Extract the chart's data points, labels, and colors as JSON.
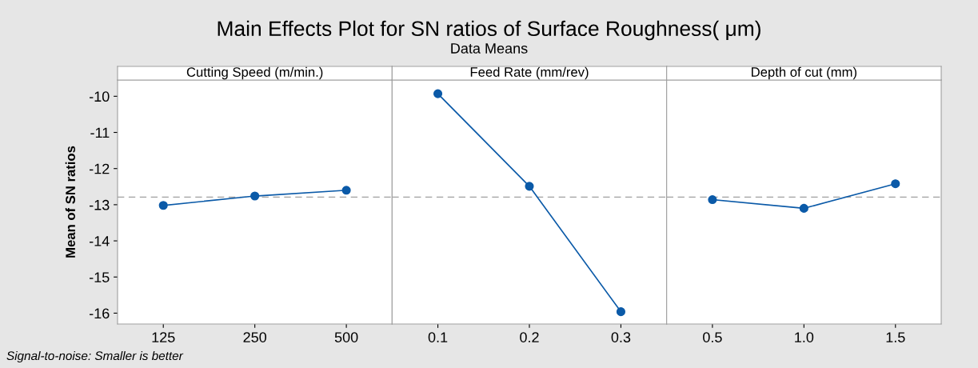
{
  "chart_data": [
    {
      "type": "other",
      "title": "Main Effects Plot for SN ratios of Surface Roughness( μm)",
      "subtitle": "Data Means",
      "annotations": [
        "Signal-to-noise: Smaller is better"
      ]
    },
    {
      "type": "line",
      "title": "Cutting Speed (m/min.)",
      "ylabel": "Mean of SN ratios",
      "categories": [
        "125",
        "250",
        "500"
      ],
      "series": [
        {
          "color": "#0b5aa8",
          "values": [
            -13.02,
            -12.76,
            -12.6
          ]
        }
      ],
      "ylim": [
        -16.3,
        -9.55
      ],
      "yticks": [
        -16,
        -15,
        -14,
        -13,
        -12,
        -11,
        -10
      ],
      "marker": "circle",
      "grid": false,
      "legend": false,
      "ref_lines": [
        {
          "axis": "y",
          "value": -12.79,
          "color": "#a0a0a0",
          "line_style": "dashed"
        }
      ]
    },
    {
      "type": "line",
      "title": "Feed Rate (mm/rev)",
      "categories": [
        "0.1",
        "0.2",
        "0.3"
      ],
      "series": [
        {
          "color": "#0b5aa8",
          "values": [
            -9.93,
            -12.49,
            -15.96
          ]
        }
      ],
      "ylim": [
        -16.3,
        -9.55
      ],
      "tick_labels": "x",
      "marker": "circle",
      "grid": false,
      "legend": false,
      "ref_lines": [
        {
          "axis": "y",
          "value": -12.79,
          "color": "#a0a0a0",
          "line_style": "dashed"
        }
      ]
    },
    {
      "type": "line",
      "title": "Depth of cut (mm)",
      "categories": [
        "0.5",
        "1.0",
        "1.5"
      ],
      "series": [
        {
          "color": "#0b5aa8",
          "values": [
            -12.86,
            -13.1,
            -12.42
          ]
        }
      ],
      "ylim": [
        -16.3,
        -9.55
      ],
      "tick_labels": "x",
      "marker": "circle",
      "grid": false,
      "legend": false,
      "ref_lines": [
        {
          "axis": "y",
          "value": -12.79,
          "color": "#a0a0a0",
          "line_style": "dashed"
        }
      ]
    }
  ]
}
